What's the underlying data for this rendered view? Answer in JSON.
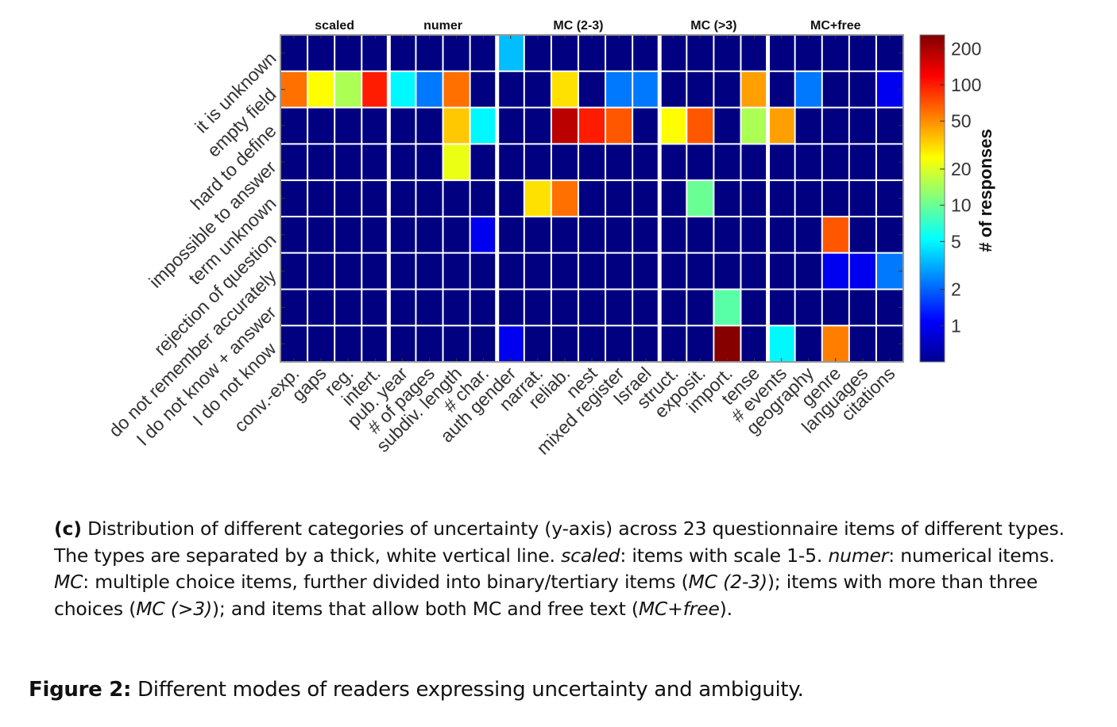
{
  "chart_data": {
    "type": "heatmap",
    "title": "",
    "xlabel": "",
    "ylabel": "",
    "group_labels": [
      "scaled",
      "numer",
      "MC (2-3)",
      "MC (>3)",
      "MC+free"
    ],
    "group_sizes": [
      4,
      4,
      6,
      4,
      5
    ],
    "x_categories": [
      "conv.-exp.",
      "gaps",
      "reg.",
      "intert.",
      "pub. year",
      "# of pages",
      "subdiv. length",
      "# char.",
      "auth gender",
      "narrat.",
      "reliab.",
      "nest",
      "mixed register",
      "Israel",
      "struct.",
      "exposit.",
      "import.",
      "tense",
      "# events",
      "geography",
      "genre",
      "languages",
      "citations"
    ],
    "y_categories": [
      "it is unknown",
      "empty field",
      "hard to define",
      "impossible to answer",
      "term unknown",
      "rejection of question",
      "do not remember accurately",
      "I do not know + answer",
      "I do not know"
    ],
    "values": [
      [
        0,
        0,
        0,
        0,
        0,
        0,
        0,
        0,
        3.5,
        0,
        0,
        0,
        0,
        0,
        0,
        0,
        0,
        0,
        0,
        0,
        0,
        0,
        0
      ],
      [
        60,
        25,
        15,
        100,
        5,
        2.3,
        60,
        0,
        0,
        0,
        30,
        0,
        2.3,
        2.3,
        0,
        0,
        0,
        45,
        0,
        2.3,
        0,
        0,
        1
      ],
      [
        0,
        0,
        0,
        0,
        0,
        0,
        35,
        5,
        0,
        0,
        180,
        100,
        70,
        0,
        25,
        70,
        0,
        15,
        45,
        0,
        0,
        0,
        0
      ],
      [
        0,
        0,
        0,
        0,
        0,
        0,
        22,
        0,
        0,
        0,
        0,
        0,
        0,
        0,
        0,
        0,
        0,
        0,
        0,
        0,
        0,
        0,
        0
      ],
      [
        0,
        0,
        0,
        0,
        0,
        0,
        0,
        0,
        0,
        30,
        60,
        0,
        0,
        0,
        0,
        10,
        0,
        0,
        0,
        0,
        0,
        0,
        0
      ],
      [
        0,
        0,
        0,
        0,
        0,
        0,
        0,
        1,
        0,
        0,
        0,
        0,
        0,
        0,
        0,
        0,
        0,
        0,
        0,
        0,
        70,
        0,
        0
      ],
      [
        0,
        0,
        0,
        0,
        0,
        0,
        0,
        0,
        0,
        0,
        0,
        0,
        0,
        0,
        0,
        0,
        0,
        0,
        0,
        0,
        1,
        1,
        2.3
      ],
      [
        0,
        0,
        0,
        0,
        0,
        0,
        0,
        0,
        0,
        0,
        0,
        0,
        0,
        0,
        0,
        0,
        9,
        0,
        0,
        0,
        0,
        0,
        0
      ],
      [
        0,
        0,
        0,
        0,
        0,
        0,
        0,
        0,
        1,
        0,
        0,
        0,
        0,
        0,
        0,
        0,
        250,
        0,
        5,
        0,
        55,
        0,
        0
      ]
    ],
    "colorbar": {
      "label": "# of responses",
      "scale": "log",
      "colormap": "jet",
      "range": [
        0.5,
        260
      ],
      "ticks": [
        1,
        2,
        5,
        10,
        20,
        50,
        100,
        200
      ],
      "tick_labels": [
        "1",
        "2",
        "5",
        "10",
        "20",
        "50",
        "100",
        "200"
      ]
    },
    "grid": true,
    "zero_color": "#000080",
    "grid_color": "#ffffff"
  },
  "caption": {
    "label": "(c)",
    "parts": [
      {
        "t": " Distribution of different categories of uncertainty (y-axis) across 23 questionnaire items of different types. The types are separated by a thick, white vertical line. ",
        "i": false
      },
      {
        "t": "scaled",
        "i": true
      },
      {
        "t": ":  items with scale 1-5. ",
        "i": false
      },
      {
        "t": "numer",
        "i": true
      },
      {
        "t": ":  numerical items. ",
        "i": false
      },
      {
        "t": "MC",
        "i": true
      },
      {
        "t": ": multiple choice items, further divided into binary/tertiary items (",
        "i": false
      },
      {
        "t": "MC (2-3)",
        "i": true
      },
      {
        "t": "); items with more than three choices (",
        "i": false
      },
      {
        "t": "MC (>3)",
        "i": true
      },
      {
        "t": "); and items that allow both MC and free text (",
        "i": false
      },
      {
        "t": "MC+free",
        "i": true
      },
      {
        "t": ").",
        "i": false
      }
    ]
  },
  "figure_caption": {
    "label": "Figure 2:",
    "text": " Different modes of readers expressing uncertainty and ambiguity."
  }
}
